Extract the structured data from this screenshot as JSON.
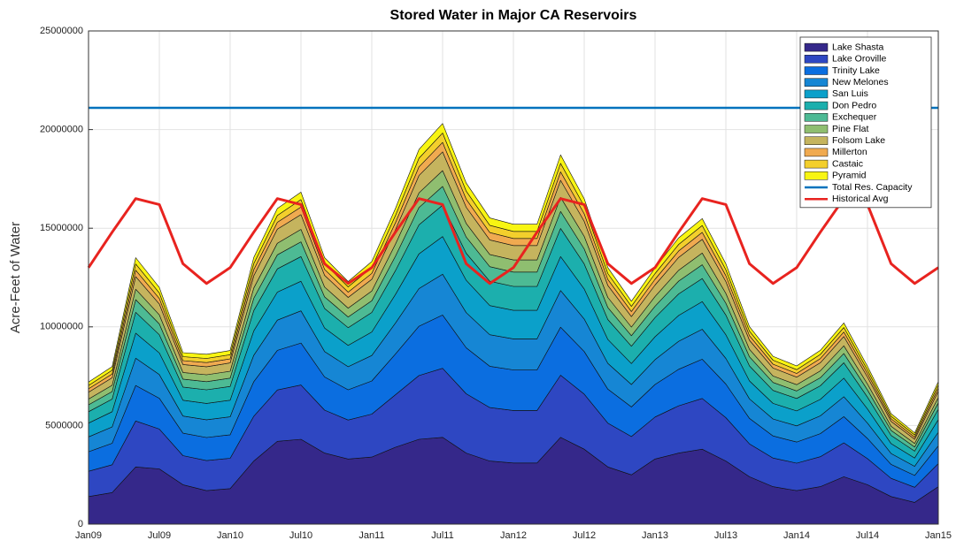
{
  "chart_data": {
    "type": "stacked_area",
    "title": "Stored Water in Major CA Reservoirs",
    "ylabel": "Acre-Feet of Water",
    "x": [
      0,
      2,
      4,
      6,
      8,
      10,
      12,
      14,
      16,
      18,
      20,
      22,
      24,
      26,
      28,
      30,
      32,
      34,
      36,
      38,
      40,
      42,
      44,
      46,
      48,
      50,
      52,
      54,
      56,
      58,
      60,
      62,
      64,
      66,
      68,
      70,
      72
    ],
    "xlim": [
      0,
      72
    ],
    "xticks": [
      {
        "value": 0,
        "label": "Jan09"
      },
      {
        "value": 6,
        "label": "Jul09"
      },
      {
        "value": 12,
        "label": "Jan10"
      },
      {
        "value": 18,
        "label": "Jul10"
      },
      {
        "value": 24,
        "label": "Jan11"
      },
      {
        "value": 30,
        "label": "Jul11"
      },
      {
        "value": 36,
        "label": "Jan12"
      },
      {
        "value": 42,
        "label": "Jul12"
      },
      {
        "value": 48,
        "label": "Jan13"
      },
      {
        "value": 54,
        "label": "Jul13"
      },
      {
        "value": 60,
        "label": "Jan14"
      },
      {
        "value": 66,
        "label": "Jul14"
      },
      {
        "value": 72,
        "label": "Jan15"
      }
    ],
    "ylim": [
      0,
      25000000
    ],
    "yticks": [
      0,
      5000000,
      10000000,
      15000000,
      20000000,
      25000000
    ],
    "grid": true,
    "legend": "top-right",
    "series": [
      {
        "name": "Lake Shasta",
        "color": "#35288a",
        "values": [
          1400000.0,
          1600000.0,
          2900000.0,
          2800000.0,
          2000000.0,
          1700000.0,
          1800000.0,
          3200000.0,
          4200000.0,
          4300000.0,
          3600000.0,
          3300000.0,
          3400000.0,
          3900000.0,
          4300000.0,
          4400000.0,
          3600000.0,
          3200000.0,
          3100000.0,
          3100000.0,
          4400000.0,
          3800000.0,
          2900000.0,
          2500000.0,
          3300000.0,
          3600000.0,
          3800000.0,
          3200000.0,
          2400000.0,
          1900000.0,
          1700000.0,
          1900000.0,
          2400000.0,
          2000000.0,
          1400000.0,
          1100000.0,
          1900000.0
        ]
      },
      {
        "name": "Lake Oroville",
        "color": "#2e47c2",
        "values": [
          1280000.0,
          1410000.0,
          2330000.0,
          2020000.0,
          1470000.0,
          1520000.0,
          1540000.0,
          2270000.0,
          2600000.0,
          2750000.0,
          2180000.0,
          1980000.0,
          2180000.0,
          2660000.0,
          3230000.0,
          3500000.0,
          3010000.0,
          2710000.0,
          2660000.0,
          2660000.0,
          3150000.0,
          2790000.0,
          2220000.0,
          1940000.0,
          2130000.0,
          2400000.0,
          2570000.0,
          2200000.0,
          1670000.0,
          1450000.0,
          1390000.0,
          1520000.0,
          1720000.0,
          1320000.0,
          920000.0,
          770000.0,
          1170000.0
        ]
      },
      {
        "name": "Trinity Lake",
        "color": "#0b6ee0",
        "values": [
          990000.0,
          1090000.0,
          1800000.0,
          1560000.0,
          1140000.0,
          1170000.0,
          1190000.0,
          1750000.0,
          2010000.0,
          2130000.0,
          1680000.0,
          1530000.0,
          1680000.0,
          2060000.0,
          2500000.0,
          2700000.0,
          2330000.0,
          2090000.0,
          2060000.0,
          2060000.0,
          2430000.0,
          2160000.0,
          1720000.0,
          1500000.0,
          1650000.0,
          1850000.0,
          1990000.0,
          1700000.0,
          1290000.0,
          1120000.0,
          1070000.0,
          1170000.0,
          1330000.0,
          1020000.0,
          710000.0,
          600000.0,
          900000.0
        ]
      },
      {
        "name": "New Melones",
        "color": "#1686d4",
        "values": [
          750000.0,
          830000.0,
          1380000.0,
          1200000.0,
          870000.0,
          900000.0,
          910000.0,
          1340000.0,
          1530000.0,
          1630000.0,
          1290000.0,
          1170000.0,
          1290000.0,
          1570000.0,
          1910000.0,
          2070000.0,
          1780000.0,
          1600000.0,
          1570000.0,
          1570000.0,
          1860000.0,
          1650000.0,
          1310000.0,
          1140000.0,
          1260000.0,
          1420000.0,
          1520000.0,
          1300000.0,
          990000.0,
          860000.0,
          820000.0,
          900000.0,
          1010000.0,
          780000.0,
          550000.0,
          460000.0,
          690000.0
        ]
      },
      {
        "name": "San Luis",
        "color": "#0ba0ca",
        "values": [
          700000.0,
          770000.0,
          1270000.0,
          1100000.0,
          800000.0,
          830000.0,
          840000.0,
          1240000.0,
          1420000.0,
          1500000.0,
          1190000.0,
          1080000.0,
          1190000.0,
          1450000.0,
          1760000.0,
          1910000.0,
          1640000.0,
          1480000.0,
          1450000.0,
          1450000.0,
          1720000.0,
          1520000.0,
          1210000.0,
          1060000.0,
          1160000.0,
          1310000.0,
          1400000.0,
          1200000.0,
          910000.0,
          790000.0,
          760000.0,
          830000.0,
          940000.0,
          720000.0,
          500000.0,
          420000.0,
          640000.0
        ]
      },
      {
        "name": "Don Pedro",
        "color": "#1cafad",
        "values": [
          580000.0,
          640000.0,
          1060000.0,
          920000.0,
          670000.0,
          690000.0,
          700000.0,
          1030000.0,
          1180000.0,
          1250000.0,
          990000.0,
          900000.0,
          990000.0,
          1210000.0,
          1470000.0,
          1590000.0,
          1370000.0,
          1230000.0,
          1210000.0,
          1210000.0,
          1430000.0,
          1270000.0,
          1010000.0,
          880000.0,
          970000.0,
          1090000.0,
          1170000.0,
          1000000.0,
          760000.0,
          660000.0,
          630000.0,
          690000.0,
          780000.0,
          600000.0,
          420000.0,
          350000.0,
          530000.0
        ]
      },
      {
        "name": "Exchequer",
        "color": "#4dba94",
        "values": [
          350000.0,
          380000.0,
          640000.0,
          550000.0,
          400000.0,
          410000.0,
          420000.0,
          620000.0,
          710000.0,
          750000.0,
          590000.0,
          540000.0,
          590000.0,
          730000.0,
          880000.0,
          950000.0,
          820000.0,
          740000.0,
          730000.0,
          730000.0,
          860000.0,
          760000.0,
          610000.0,
          530000.0,
          580000.0,
          650000.0,
          700000.0,
          600000.0,
          460000.0,
          400000.0,
          380000.0,
          410000.0,
          470000.0,
          360000.0,
          250000.0,
          210000.0,
          320000.0
        ]
      },
      {
        "name": "Pine Flat",
        "color": "#8fbe70",
        "values": [
          290000.0,
          320000.0,
          530000.0,
          460000.0,
          340000.0,
          350000.0,
          350000.0,
          520000.0,
          590000.0,
          630000.0,
          500000.0,
          450000.0,
          500000.0,
          610000.0,
          740000.0,
          800000.0,
          690000.0,
          620000.0,
          610000.0,
          610000.0,
          720000.0,
          640000.0,
          510000.0,
          440000.0,
          490000.0,
          550000.0,
          590000.0,
          500000.0,
          380000.0,
          330000.0,
          320000.0,
          350000.0,
          390000.0,
          300000.0,
          210000.0,
          180000.0,
          270000.0
        ]
      },
      {
        "name": "Folsom Lake",
        "color": "#c5b45e",
        "values": [
          350000.0,
          380000.0,
          640000.0,
          550000.0,
          400000.0,
          410000.0,
          420000.0,
          620000.0,
          710000.0,
          750000.0,
          590000.0,
          540000.0,
          590000.0,
          730000.0,
          880000.0,
          950000.0,
          820000.0,
          740000.0,
          730000.0,
          730000.0,
          860000.0,
          760000.0,
          610000.0,
          530000.0,
          580000.0,
          650000.0,
          700000.0,
          600000.0,
          460000.0,
          400000.0,
          380000.0,
          410000.0,
          470000.0,
          360000.0,
          250000.0,
          210000.0,
          320000.0
        ]
      },
      {
        "name": "Millerton",
        "color": "#f0aa50",
        "values": [
          170000.0,
          190000.0,
          320000.0,
          280000.0,
          200000.0,
          210000.0,
          210000.0,
          310000.0,
          350000.0,
          380000.0,
          300000.0,
          270000.0,
          300000.0,
          360000.0,
          440000.0,
          480000.0,
          410000.0,
          370000.0,
          360000.0,
          360000.0,
          430000.0,
          380000.0,
          300000.0,
          260000.0,
          290000.0,
          330000.0,
          350000.0,
          300000.0,
          230000.0,
          200000.0,
          190000.0,
          210000.0,
          230000.0,
          180000.0,
          130000.0,
          110000.0,
          160000.0
        ]
      },
      {
        "name": "Castaic",
        "color": "#f3cf2c",
        "values": [
          170000.0,
          190000.0,
          320000.0,
          280000.0,
          200000.0,
          210000.0,
          210000.0,
          310000.0,
          350000.0,
          380000.0,
          300000.0,
          270000.0,
          300000.0,
          360000.0,
          440000.0,
          480000.0,
          410000.0,
          370000.0,
          360000.0,
          360000.0,
          430000.0,
          380000.0,
          300000.0,
          260000.0,
          290000.0,
          330000.0,
          350000.0,
          300000.0,
          230000.0,
          200000.0,
          190000.0,
          210000.0,
          230000.0,
          180000.0,
          130000.0,
          110000.0,
          160000.0
        ]
      },
      {
        "name": "Pyramid",
        "color": "#f8f512",
        "values": [
          170000.0,
          190000.0,
          320000.0,
          280000.0,
          200000.0,
          210000.0,
          210000.0,
          310000.0,
          350000.0,
          380000.0,
          300000.0,
          270000.0,
          300000.0,
          360000.0,
          440000.0,
          480000.0,
          410000.0,
          370000.0,
          360000.0,
          360000.0,
          430000.0,
          380000.0,
          300000.0,
          260000.0,
          290000.0,
          330000.0,
          350000.0,
          300000.0,
          230000.0,
          200000.0,
          190000.0,
          210000.0,
          230000.0,
          180000.0,
          130000.0,
          110000.0,
          160000.0
        ]
      }
    ],
    "capacity": {
      "name": "Total Res. Capacity",
      "color": "#0072bd",
      "value": 21100000.0
    },
    "historical": {
      "name": "Historical Avg",
      "color": "#e8231f",
      "values": [
        13000000.0,
        14800000.0,
        16500000.0,
        16200000.0,
        13200000.0,
        12200000.0,
        13000000.0,
        14800000.0,
        16500000.0,
        16200000.0,
        13200000.0,
        12200000.0,
        13000000.0,
        14800000.0,
        16500000.0,
        16200000.0,
        13200000.0,
        12200000.0,
        13000000.0,
        14800000.0,
        16500000.0,
        16200000.0,
        13200000.0,
        12200000.0,
        13000000.0,
        14800000.0,
        16500000.0,
        16200000.0,
        13200000.0,
        12200000.0,
        13000000.0,
        14800000.0,
        16500000.0,
        16200000.0,
        13200000.0,
        12200000.0,
        13000000.0
      ]
    }
  }
}
